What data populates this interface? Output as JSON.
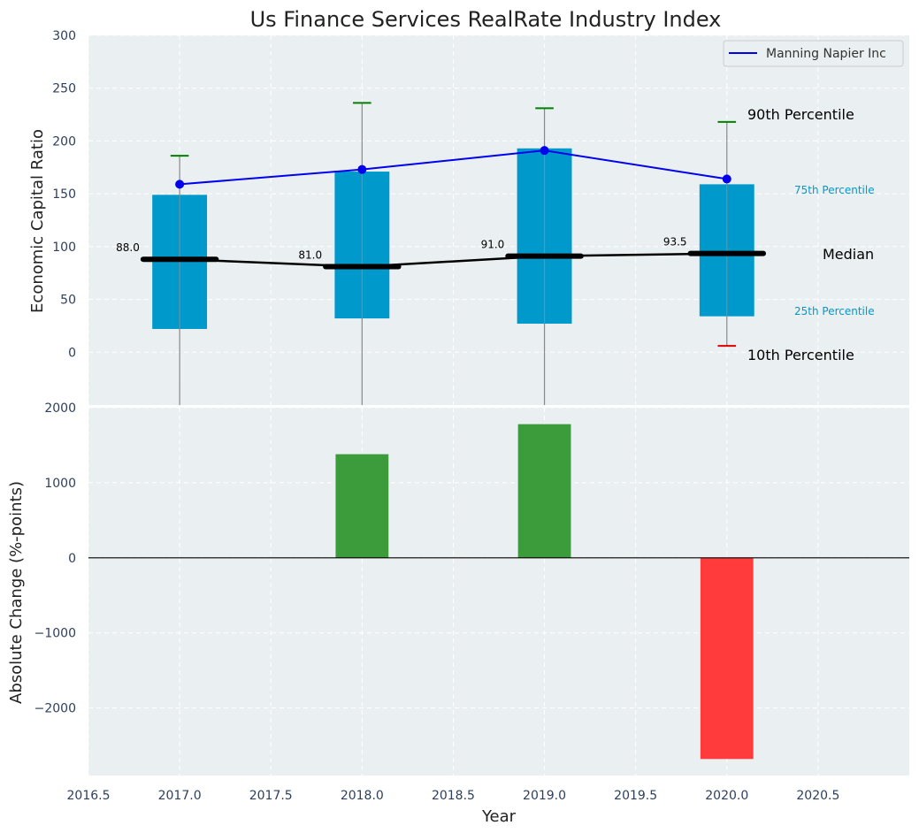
{
  "chart_data": [
    {
      "type": "box",
      "title": "Us Finance Services RealRate Industry Index",
      "ylabel": "Economic Capital Ratio",
      "xlim": [
        2016.5,
        2021.0
      ],
      "ylim": [
        -50,
        300
      ],
      "yticks": [
        0,
        50,
        100,
        150,
        200,
        250,
        300
      ],
      "grid": true,
      "legend": {
        "position": "top-right",
        "entries": [
          "Manning Napier Inc"
        ]
      },
      "colors": {
        "box": "#0099cc",
        "series": "#0000ee",
        "median": "#000000",
        "p90": "#008000",
        "p10": "#dd0000",
        "whisker": "#888888",
        "background": "#eaeff1"
      },
      "years": [
        2017,
        2018,
        2019,
        2020
      ],
      "p25": [
        22,
        32,
        27,
        34
      ],
      "p75": [
        149,
        171,
        193,
        159
      ],
      "median": [
        88.0,
        81.0,
        91.0,
        93.5
      ],
      "median_labels": [
        "88.0",
        "81.0",
        "91.0",
        "93.5"
      ],
      "p90": [
        186,
        236,
        231,
        218
      ],
      "p10": [
        null,
        null,
        null,
        6
      ],
      "series": [
        {
          "name": "Manning Napier Inc",
          "x": [
            2017,
            2018,
            2019,
            2020
          ],
          "values": [
            159,
            173,
            191,
            164
          ]
        }
      ],
      "annotations": {
        "p90": "90th Percentile",
        "p75": "75th Percentile",
        "median": "Median",
        "p25": "25th Percentile",
        "p10": "10th Percentile"
      }
    },
    {
      "type": "bar",
      "xlabel": "Year",
      "ylabel": "Absolute Change (%-points)",
      "xlim": [
        2016.5,
        2021.0
      ],
      "xticks": [
        2016.5,
        2017.0,
        2017.5,
        2018.0,
        2018.5,
        2019.0,
        2019.5,
        2020.0,
        2020.5
      ],
      "xtick_labels": [
        "2016.5",
        "2017.0",
        "2017.5",
        "2018.0",
        "2018.5",
        "2019.0",
        "2019.5",
        "2020.0",
        "2020.5"
      ],
      "ylim": [
        -2900,
        2000
      ],
      "yticks": [
        -2000,
        -1000,
        0,
        1000,
        2000
      ],
      "ytick_labels": [
        "−2000",
        "−1000",
        "0",
        "1000",
        "2000"
      ],
      "grid": true,
      "colors": {
        "positive": "#3c9c3c",
        "negative": "#ff3b3b"
      },
      "x": [
        2018,
        2019,
        2020
      ],
      "values": [
        1380,
        1780,
        -2680
      ]
    }
  ]
}
